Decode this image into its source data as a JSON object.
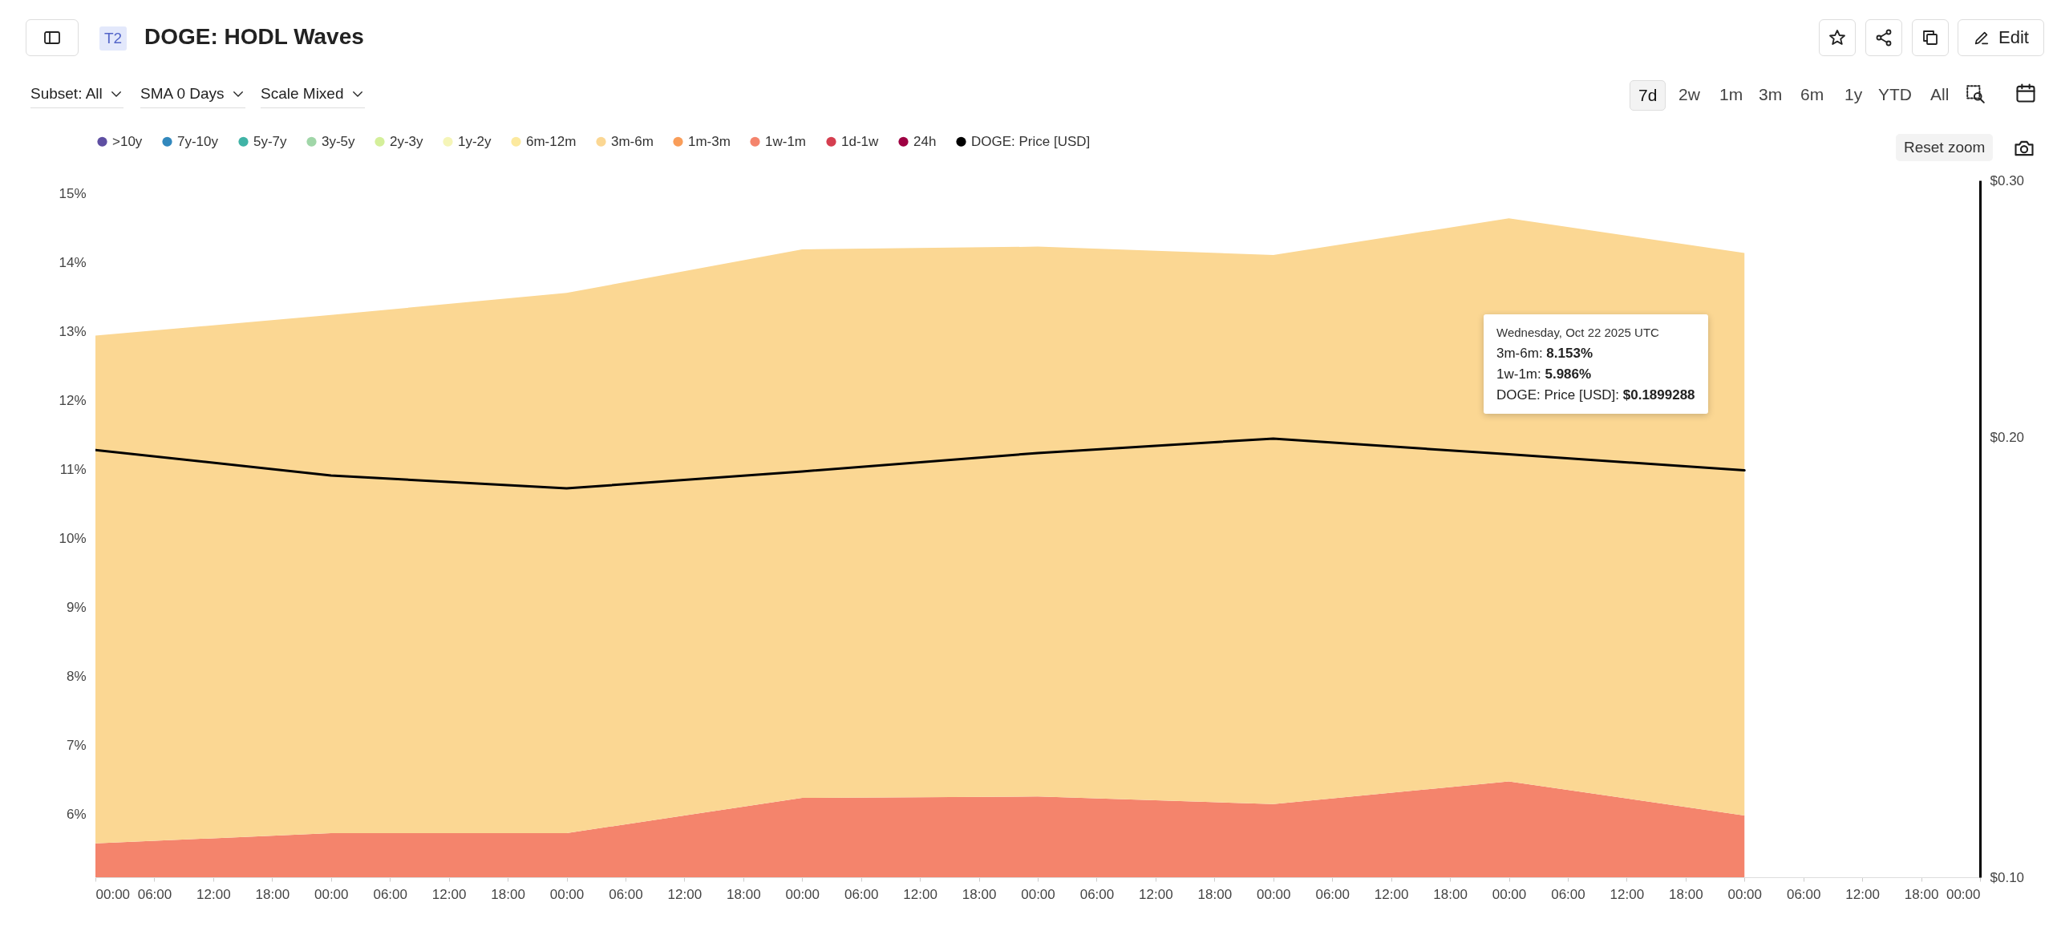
{
  "chart_data": {
    "type": "area",
    "title": "DOGE: HODL Waves",
    "stacked": true,
    "legend": "top left",
    "log": "y2",
    "x": [
      "2025-10-15",
      "2025-10-16",
      "2025-10-17",
      "2025-10-18",
      "2025-10-19",
      "2025-10-20",
      "2025-10-21",
      "2025-10-22"
    ],
    "xlim": [
      "2025-10-15",
      "2025-10-23"
    ],
    "xticks": [
      {
        "value": "2025-10-15T00:00",
        "label": "00:00"
      },
      {
        "value": "2025-10-15T06:00",
        "label": "06:00"
      },
      {
        "value": "2025-10-15T12:00",
        "label": "12:00"
      },
      {
        "value": "2025-10-15T18:00",
        "label": "18:00"
      },
      {
        "value": "2025-10-16T00:00",
        "label": "00:00"
      },
      {
        "value": "2025-10-16T06:00",
        "label": "06:00"
      },
      {
        "value": "2025-10-16T12:00",
        "label": "12:00"
      },
      {
        "value": "2025-10-16T18:00",
        "label": "18:00"
      },
      {
        "value": "2025-10-17T00:00",
        "label": "00:00"
      },
      {
        "value": "2025-10-17T06:00",
        "label": "06:00"
      },
      {
        "value": "2025-10-17T12:00",
        "label": "12:00"
      },
      {
        "value": "2025-10-17T18:00",
        "label": "18:00"
      },
      {
        "value": "2025-10-18T00:00",
        "label": "00:00"
      },
      {
        "value": "2025-10-18T06:00",
        "label": "06:00"
      },
      {
        "value": "2025-10-18T12:00",
        "label": "12:00"
      },
      {
        "value": "2025-10-18T18:00",
        "label": "18:00"
      },
      {
        "value": "2025-10-19T00:00",
        "label": "00:00"
      },
      {
        "value": "2025-10-19T06:00",
        "label": "06:00"
      },
      {
        "value": "2025-10-19T12:00",
        "label": "12:00"
      },
      {
        "value": "2025-10-19T18:00",
        "label": "18:00"
      },
      {
        "value": "2025-10-20T00:00",
        "label": "00:00"
      },
      {
        "value": "2025-10-20T06:00",
        "label": "06:00"
      },
      {
        "value": "2025-10-20T12:00",
        "label": "12:00"
      },
      {
        "value": "2025-10-20T18:00",
        "label": "18:00"
      },
      {
        "value": "2025-10-21T00:00",
        "label": "00:00"
      },
      {
        "value": "2025-10-21T06:00",
        "label": "06:00"
      },
      {
        "value": "2025-10-21T12:00",
        "label": "12:00"
      },
      {
        "value": "2025-10-21T18:00",
        "label": "18:00"
      },
      {
        "value": "2025-10-22T00:00",
        "label": "00:00"
      },
      {
        "value": "2025-10-22T06:00",
        "label": "06:00"
      },
      {
        "value": "2025-10-22T12:00",
        "label": "12:00"
      },
      {
        "value": "2025-10-22T18:00",
        "label": "18:00"
      },
      {
        "value": "2025-10-23T00:00",
        "label": "00:00"
      }
    ],
    "ylim": [
      5.09,
      15.19
    ],
    "yticks": [
      {
        "value": 6,
        "label": "6%"
      },
      {
        "value": 7,
        "label": "7%"
      },
      {
        "value": 8,
        "label": "8%"
      },
      {
        "value": 9,
        "label": "9%"
      },
      {
        "value": 10,
        "label": "10%"
      },
      {
        "value": 11,
        "label": "11%"
      },
      {
        "value": 12,
        "label": "12%"
      },
      {
        "value": 13,
        "label": "13%"
      },
      {
        "value": 14,
        "label": "14%"
      },
      {
        "value": 15,
        "label": "15%"
      }
    ],
    "y2lim": [
      0.1,
      0.3
    ],
    "y2ticks": [
      {
        "value": 0.1,
        "label": "$0.10"
      },
      {
        "value": 0.2,
        "label": "$0.20"
      },
      {
        "value": 0.3,
        "label": "$0.30"
      }
    ],
    "series": [
      {
        "name": "24h",
        "type": "area",
        "color": "#9e0142",
        "values": [
          null,
          null,
          null,
          null,
          null,
          null,
          null,
          null
        ]
      },
      {
        "name": "1d-1w",
        "type": "area",
        "color": "#d53e4f",
        "values": [
          null,
          null,
          null,
          null,
          null,
          null,
          null,
          null
        ]
      },
      {
        "name": "1w-1m",
        "type": "area",
        "color": "#f4846c",
        "values": [
          5.58,
          5.73,
          5.73,
          6.24,
          6.26,
          6.15,
          6.48,
          5.986
        ]
      },
      {
        "name": "1m-3m",
        "type": "area",
        "color": "#f99d59",
        "values": [
          null,
          null,
          null,
          null,
          null,
          null,
          null,
          null
        ]
      },
      {
        "name": "3m-6m",
        "type": "area",
        "color": "#fbd793",
        "values": [
          7.36,
          7.51,
          7.83,
          7.95,
          7.97,
          7.96,
          8.16,
          8.153
        ]
      },
      {
        "name": "6m-12m",
        "type": "area",
        "color": "#fce99e",
        "values": [
          null,
          null,
          null,
          null,
          null,
          null,
          null,
          null
        ]
      },
      {
        "name": "1y-2y",
        "type": "area",
        "color": "#f5f5b8",
        "values": [
          null,
          null,
          null,
          null,
          null,
          null,
          null,
          null
        ]
      },
      {
        "name": "2y-3y",
        "type": "area",
        "color": "#d4ef9a",
        "values": [
          null,
          null,
          null,
          null,
          null,
          null,
          null,
          null
        ]
      },
      {
        "name": "3y-5y",
        "type": "area",
        "color": "#a0d6a8",
        "values": [
          null,
          null,
          null,
          null,
          null,
          null,
          null,
          null
        ]
      },
      {
        "name": "5y-7y",
        "type": "area",
        "color": "#40b3a6",
        "values": [
          null,
          null,
          null,
          null,
          null,
          null,
          null,
          null
        ]
      },
      {
        "name": "7y-10y",
        "type": "area",
        "color": "#3288bd",
        "values": [
          null,
          null,
          null,
          null,
          null,
          null,
          null,
          null
        ]
      },
      {
        "name": ">10y",
        "type": "area",
        "color": "#5e4fa2",
        "values": [
          null,
          null,
          null,
          null,
          null,
          null,
          null,
          null
        ]
      },
      {
        "name": "DOGE: Price [USD]",
        "type": "line",
        "axis": "y2",
        "color": "#000000",
        "values": [
          0.1961,
          0.1884,
          0.1846,
          0.1896,
          0.1952,
          0.1997,
          0.1948,
          0.1899288
        ]
      }
    ],
    "annotations": [
      "T2",
      "Subset: All",
      "SMA 0 Days",
      "Scale Mixed",
      "7d",
      "2w",
      "1m",
      "3m",
      "6m",
      "1y",
      "YTD",
      "All",
      "Reset zoom",
      "Edit",
      "Wednesday, Oct 22 2025 UTC",
      "3m-6m: 8.153%",
      "1w-1m: 5.986%",
      "DOGE: Price [USD]: $0.1899288"
    ]
  }
}
